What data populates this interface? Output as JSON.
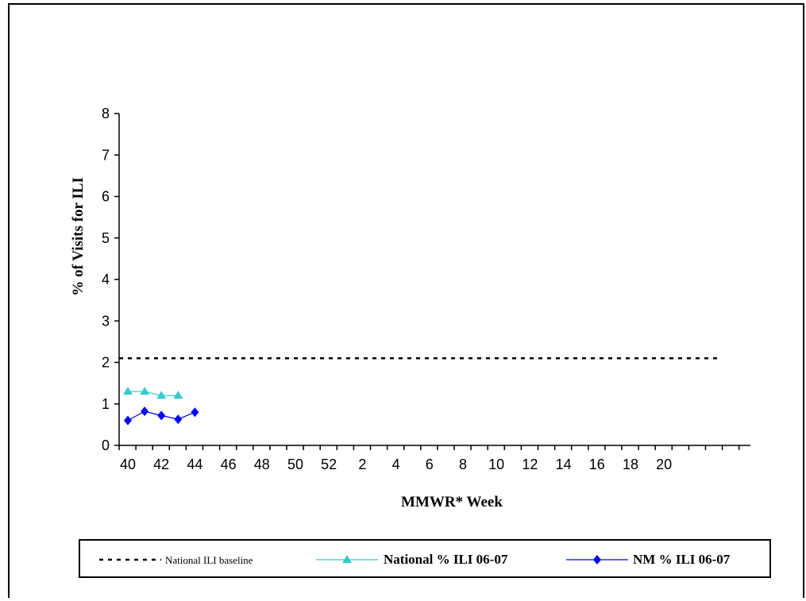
{
  "chart_data": {
    "type": "line",
    "xlabel": "MMWR* Week",
    "ylabel": "% of Visits for  ILI",
    "x_categories": [
      "40",
      "41",
      "42",
      "43",
      "44",
      "45",
      "46",
      "47",
      "48",
      "49",
      "50",
      "51",
      "52",
      "1",
      "2",
      "3",
      "4",
      "5",
      "6",
      "7",
      "8",
      "9",
      "10",
      "11",
      "12",
      "13",
      "14",
      "15",
      "16",
      "17",
      "18",
      "19",
      "20",
      "21",
      "22",
      "23",
      "24",
      "25",
      "26"
    ],
    "x_tick_labels": [
      "40",
      "42",
      "44",
      "46",
      "48",
      "50",
      "52",
      "2",
      "4",
      "6",
      "8",
      "10",
      "12",
      "14",
      "16",
      "18",
      "20"
    ],
    "ylim": [
      0,
      8
    ],
    "y_ticks": [
      0,
      1,
      2,
      3,
      4,
      5,
      6,
      7,
      8
    ],
    "grid": false,
    "legend_position": "bottom",
    "series": [
      {
        "name": "National ILI baseline",
        "style": "dashed",
        "color": "#000000",
        "marker": "none",
        "value": 2.1
      },
      {
        "name": "National % ILI 06-07",
        "style": "solid",
        "color": "#33cccc",
        "marker": "triangle",
        "x": [
          "40",
          "41",
          "42",
          "43"
        ],
        "y": [
          1.3,
          1.3,
          1.2,
          1.2
        ]
      },
      {
        "name": "NM % ILI 06-07",
        "style": "solid",
        "color": "#0000ff",
        "marker": "diamond",
        "x": [
          "40",
          "41",
          "42",
          "43",
          "44"
        ],
        "y": [
          0.6,
          0.82,
          0.72,
          0.63,
          0.8
        ]
      }
    ]
  }
}
